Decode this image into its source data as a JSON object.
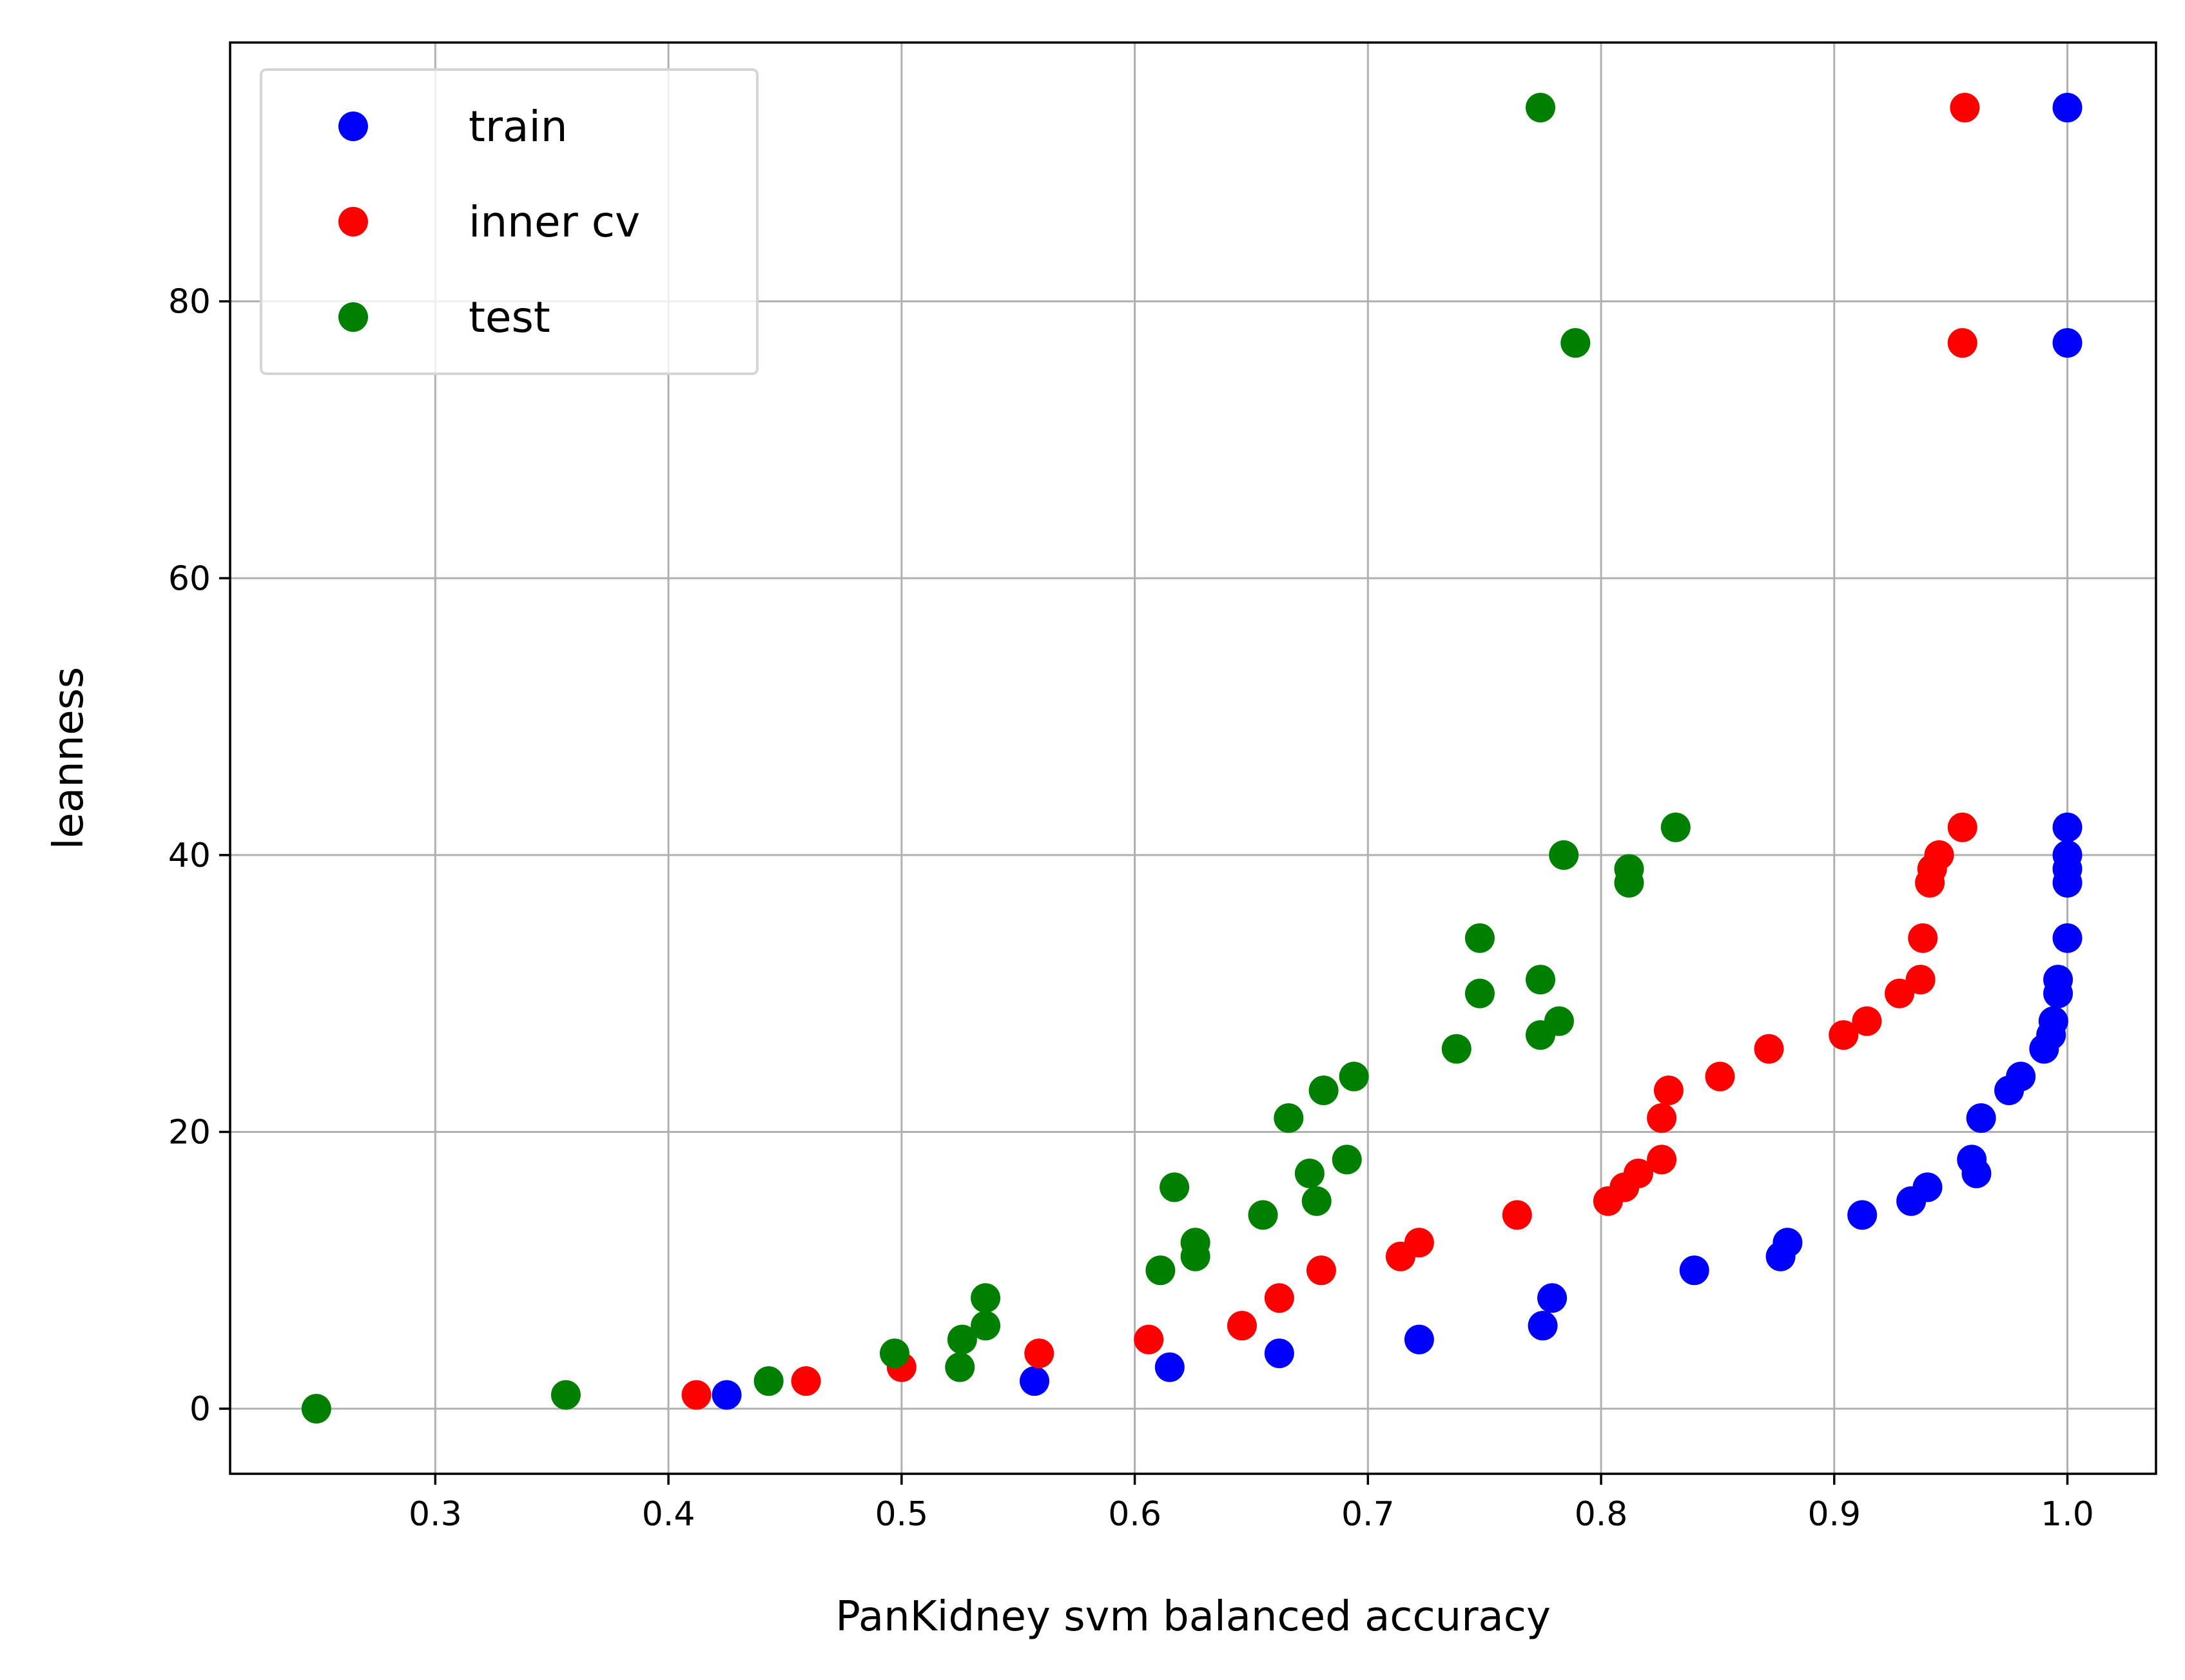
{
  "chart_data": {
    "type": "scatter",
    "xlabel": "PanKidney svm balanced accuracy",
    "ylabel": "leanness",
    "xlim": [
      0.212,
      1.038
    ],
    "ylim": [
      -4.7,
      98.7
    ],
    "xticks": [
      0.3,
      0.4,
      0.5,
      0.6,
      0.7,
      0.8,
      0.9,
      1.0
    ],
    "xtick_labels": [
      "0.3",
      "0.4",
      "0.5",
      "0.6",
      "0.7",
      "0.8",
      "0.9",
      "1.0"
    ],
    "yticks": [
      0,
      20,
      40,
      60,
      80
    ],
    "ytick_labels": [
      "0",
      "20",
      "40",
      "60",
      "80"
    ],
    "grid": true,
    "legend_position": "top-left",
    "series": [
      {
        "name": "train",
        "color": "#0000ff",
        "points": [
          [
            0.425,
            1
          ],
          [
            0.557,
            2
          ],
          [
            0.615,
            3
          ],
          [
            0.662,
            4
          ],
          [
            0.722,
            5
          ],
          [
            0.775,
            6
          ],
          [
            0.779,
            8
          ],
          [
            0.84,
            10
          ],
          [
            0.877,
            11
          ],
          [
            0.88,
            12
          ],
          [
            0.912,
            14
          ],
          [
            0.933,
            15
          ],
          [
            0.94,
            16
          ],
          [
            0.961,
            17
          ],
          [
            0.959,
            18
          ],
          [
            0.963,
            21
          ],
          [
            0.975,
            23
          ],
          [
            0.98,
            24
          ],
          [
            0.99,
            26
          ],
          [
            0.993,
            27
          ],
          [
            0.994,
            28
          ],
          [
            0.996,
            30
          ],
          [
            0.996,
            31
          ],
          [
            1.0,
            34
          ],
          [
            1.0,
            38
          ],
          [
            1.0,
            39
          ],
          [
            1.0,
            40
          ],
          [
            1.0,
            42
          ],
          [
            1.0,
            77
          ],
          [
            1.0,
            94
          ]
        ]
      },
      {
        "name": "inner cv",
        "color": "#ff0000",
        "points": [
          [
            0.412,
            1
          ],
          [
            0.459,
            2
          ],
          [
            0.5,
            3
          ],
          [
            0.559,
            4
          ],
          [
            0.606,
            5
          ],
          [
            0.646,
            6
          ],
          [
            0.662,
            8
          ],
          [
            0.68,
            10
          ],
          [
            0.714,
            11
          ],
          [
            0.722,
            12
          ],
          [
            0.764,
            14
          ],
          [
            0.803,
            15
          ],
          [
            0.81,
            16
          ],
          [
            0.816,
            17
          ],
          [
            0.826,
            18
          ],
          [
            0.826,
            21
          ],
          [
            0.829,
            23
          ],
          [
            0.851,
            24
          ],
          [
            0.872,
            26
          ],
          [
            0.904,
            27
          ],
          [
            0.914,
            28
          ],
          [
            0.928,
            30
          ],
          [
            0.937,
            31
          ],
          [
            0.938,
            34
          ],
          [
            0.941,
            38
          ],
          [
            0.942,
            39
          ],
          [
            0.945,
            40
          ],
          [
            0.955,
            42
          ],
          [
            0.955,
            77
          ],
          [
            0.956,
            94
          ]
        ]
      },
      {
        "name": "test",
        "color": "#008000",
        "points": [
          [
            0.249,
            0
          ],
          [
            0.356,
            1
          ],
          [
            0.443,
            2
          ],
          [
            0.525,
            3
          ],
          [
            0.497,
            4
          ],
          [
            0.526,
            5
          ],
          [
            0.536,
            6
          ],
          [
            0.536,
            8
          ],
          [
            0.611,
            10
          ],
          [
            0.626,
            11
          ],
          [
            0.626,
            12
          ],
          [
            0.655,
            14
          ],
          [
            0.678,
            15
          ],
          [
            0.617,
            16
          ],
          [
            0.675,
            17
          ],
          [
            0.691,
            18
          ],
          [
            0.666,
            21
          ],
          [
            0.681,
            23
          ],
          [
            0.694,
            24
          ],
          [
            0.738,
            26
          ],
          [
            0.774,
            27
          ],
          [
            0.782,
            28
          ],
          [
            0.748,
            30
          ],
          [
            0.774,
            31
          ],
          [
            0.748,
            34
          ],
          [
            0.812,
            38
          ],
          [
            0.812,
            39
          ],
          [
            0.784,
            40
          ],
          [
            0.832,
            42
          ],
          [
            0.789,
            77
          ],
          [
            0.774,
            94
          ]
        ]
      }
    ]
  }
}
